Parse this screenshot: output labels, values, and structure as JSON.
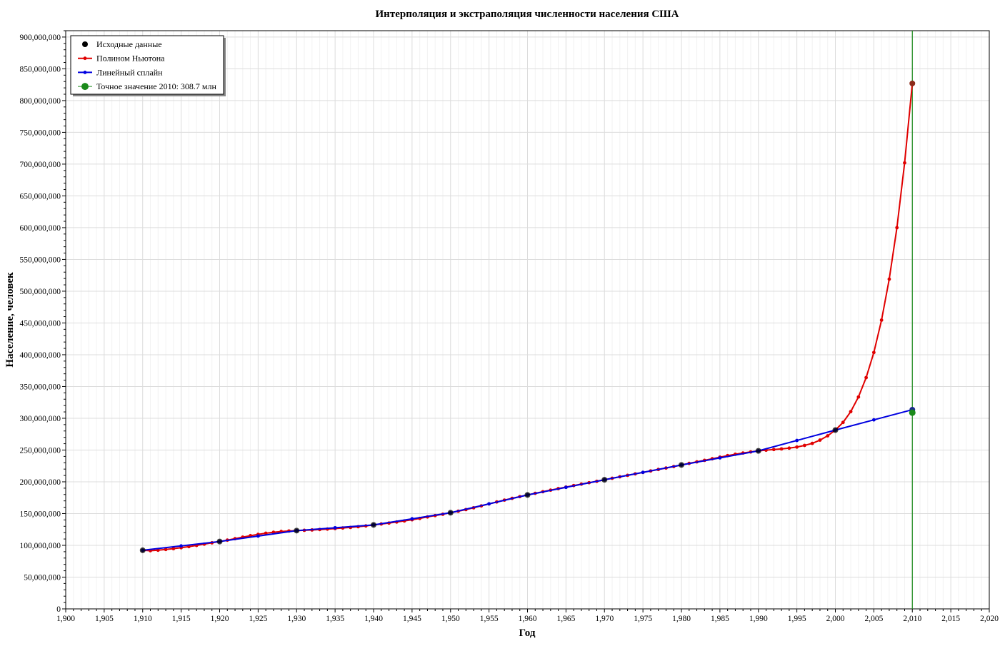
{
  "chart_data": {
    "type": "line",
    "title": "Интерполяция и экстраполяция численности населения США",
    "xlabel": "Год",
    "ylabel": "Население, человек",
    "xlim": [
      1900,
      2020
    ],
    "ylim": [
      0,
      910000000
    ],
    "x_ticks": [
      1900,
      1905,
      1910,
      1915,
      1920,
      1925,
      1930,
      1935,
      1940,
      1945,
      1950,
      1955,
      1960,
      1965,
      1970,
      1975,
      1980,
      1985,
      1990,
      1995,
      2000,
      2005,
      2010,
      2015,
      2020
    ],
    "x_tick_labels": [
      "1,900",
      "1,905",
      "1,910",
      "1,915",
      "1,920",
      "1,925",
      "1,930",
      "1,935",
      "1,940",
      "1,945",
      "1,950",
      "1,955",
      "1,960",
      "1,965",
      "1,970",
      "1,975",
      "1,980",
      "1,985",
      "1,990",
      "1,995",
      "2,000",
      "2,005",
      "2,010",
      "2,015",
      "2,020"
    ],
    "y_ticks": [
      0,
      50000000,
      100000000,
      150000000,
      200000000,
      250000000,
      300000000,
      350000000,
      400000000,
      450000000,
      500000000,
      550000000,
      600000000,
      650000000,
      700000000,
      750000000,
      800000000,
      850000000,
      900000000
    ],
    "y_tick_labels": [
      "0",
      "50,000,000",
      "100,000,000",
      "150,000,000",
      "200,000,000",
      "250,000,000",
      "300,000,000",
      "350,000,000",
      "400,000,000",
      "450,000,000",
      "500,000,000",
      "550,000,000",
      "600,000,000",
      "650,000,000",
      "700,000,000",
      "750,000,000",
      "800,000,000",
      "850,000,000",
      "900,000,000"
    ],
    "grid": true,
    "legend_position": "top-left",
    "series": [
      {
        "name": "Исходные данные",
        "kind": "points",
        "color": "#000000",
        "x": [
          1910,
          1920,
          1930,
          1940,
          1950,
          1960,
          1970,
          1980,
          1990,
          2000
        ],
        "y": [
          92228496,
          106021537,
          123202624,
          132164569,
          151325798,
          179323175,
          203211926,
          226545805,
          248709873,
          281421906
        ]
      },
      {
        "name": "Полином Ньютона",
        "kind": "line-markers",
        "color": "#e00000",
        "x": [
          1910,
          1911,
          1912,
          1913,
          1914,
          1915,
          1916,
          1917,
          1918,
          1919,
          1920,
          1921,
          1922,
          1923,
          1924,
          1925,
          1926,
          1927,
          1928,
          1929,
          1930,
          1931,
          1932,
          1933,
          1934,
          1935,
          1936,
          1937,
          1938,
          1939,
          1940,
          1941,
          1942,
          1943,
          1944,
          1945,
          1946,
          1947,
          1948,
          1949,
          1950,
          1951,
          1952,
          1953,
          1954,
          1955,
          1956,
          1957,
          1958,
          1959,
          1960,
          1961,
          1962,
          1963,
          1964,
          1965,
          1966,
          1967,
          1968,
          1969,
          1970,
          1971,
          1972,
          1973,
          1974,
          1975,
          1976,
          1977,
          1978,
          1979,
          1980,
          1981,
          1982,
          1983,
          1984,
          1985,
          1986,
          1987,
          1988,
          1989,
          1990,
          1991,
          1992,
          1993,
          1994,
          1995,
          1996,
          1997,
          1998,
          1999,
          2000,
          2001,
          2002,
          2003,
          2004,
          2005,
          2006,
          2007,
          2008,
          2009,
          2010
        ],
        "y": [
          92228496,
          91600000,
          92400000,
          93500000,
          94800000,
          96300000,
          98000000,
          99900000,
          101900000,
          104000000,
          106021537,
          108200000,
          110500000,
          112900000,
          115200000,
          117300000,
          119100000,
          120600000,
          121800000,
          122600000,
          123202624,
          123700000,
          124200000,
          124900000,
          125600000,
          126400000,
          127300000,
          128200000,
          129300000,
          130600000,
          132164569,
          133600000,
          135100000,
          136700000,
          138400000,
          140300000,
          142400000,
          144700000,
          146900000,
          149000000,
          151325798,
          153700000,
          156300000,
          159100000,
          162100000,
          165200000,
          168300000,
          171200000,
          174000000,
          176700000,
          179323175,
          181900000,
          184400000,
          186900000,
          189300000,
          191700000,
          194100000,
          196400000,
          198600000,
          200800000,
          203211926,
          205600000,
          207900000,
          210200000,
          212500000,
          214800000,
          217100000,
          219400000,
          221700000,
          224000000,
          226545805,
          229000000,
          231400000,
          233800000,
          236300000,
          238800000,
          241200000,
          243400000,
          245300000,
          247000000,
          248709873,
          249800000,
          250800000,
          251800000,
          253000000,
          254700000,
          257300000,
          260500000,
          265600000,
          272400000,
          281421906,
          293500000,
          310500000,
          333500000,
          364000000,
          403500000,
          454500000,
          519000000,
          600000000,
          702000000,
          827000000
        ]
      },
      {
        "name": "Линейный сплайн",
        "kind": "line-markers",
        "color": "#0000e0",
        "x": [
          1910,
          1915,
          1920,
          1925,
          1930,
          1935,
          1940,
          1945,
          1950,
          1955,
          1960,
          1965,
          1970,
          1975,
          1980,
          1985,
          1990,
          1995,
          2000,
          2005,
          2010
        ],
        "y": [
          92228496,
          99125000,
          106021537,
          114612000,
          123202624,
          127683000,
          132164569,
          141745000,
          151325798,
          165324000,
          179323175,
          191268000,
          203211926,
          214879000,
          226545805,
          237628000,
          248709873,
          265066000,
          281421906,
          297500000,
          313500000
        ]
      },
      {
        "name": "Точное значение 2010: 308.7 млн",
        "kind": "point",
        "color": "#1a8a1a",
        "x": [
          2010
        ],
        "y": [
          308745538
        ]
      }
    ],
    "extra_marks": {
      "vertical_line_x": 2010,
      "vertical_line_color": "#1a8a1a",
      "newton_endpoint_marker": {
        "x": 2010,
        "y": 827000000,
        "color": "#8b2a1a"
      },
      "spline_endpoint_marker": {
        "x": 2010,
        "y": 313500000,
        "color": "#1a2a8b"
      }
    }
  }
}
